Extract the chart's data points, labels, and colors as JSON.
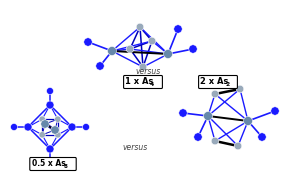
{
  "bg_color": "#ffffff",
  "blue": "#1a1aff",
  "dark_blue": "#0000bb",
  "black": "#000000",
  "gray_as": "#99aabb",
  "steel_fe": "#6688aa",
  "versus": "versus",
  "label1": "1 x As",
  "label1_sub": "4",
  "label2": "2 x As",
  "label2_sub": "2",
  "label3": "0.5 x As",
  "label3_sub": "8"
}
